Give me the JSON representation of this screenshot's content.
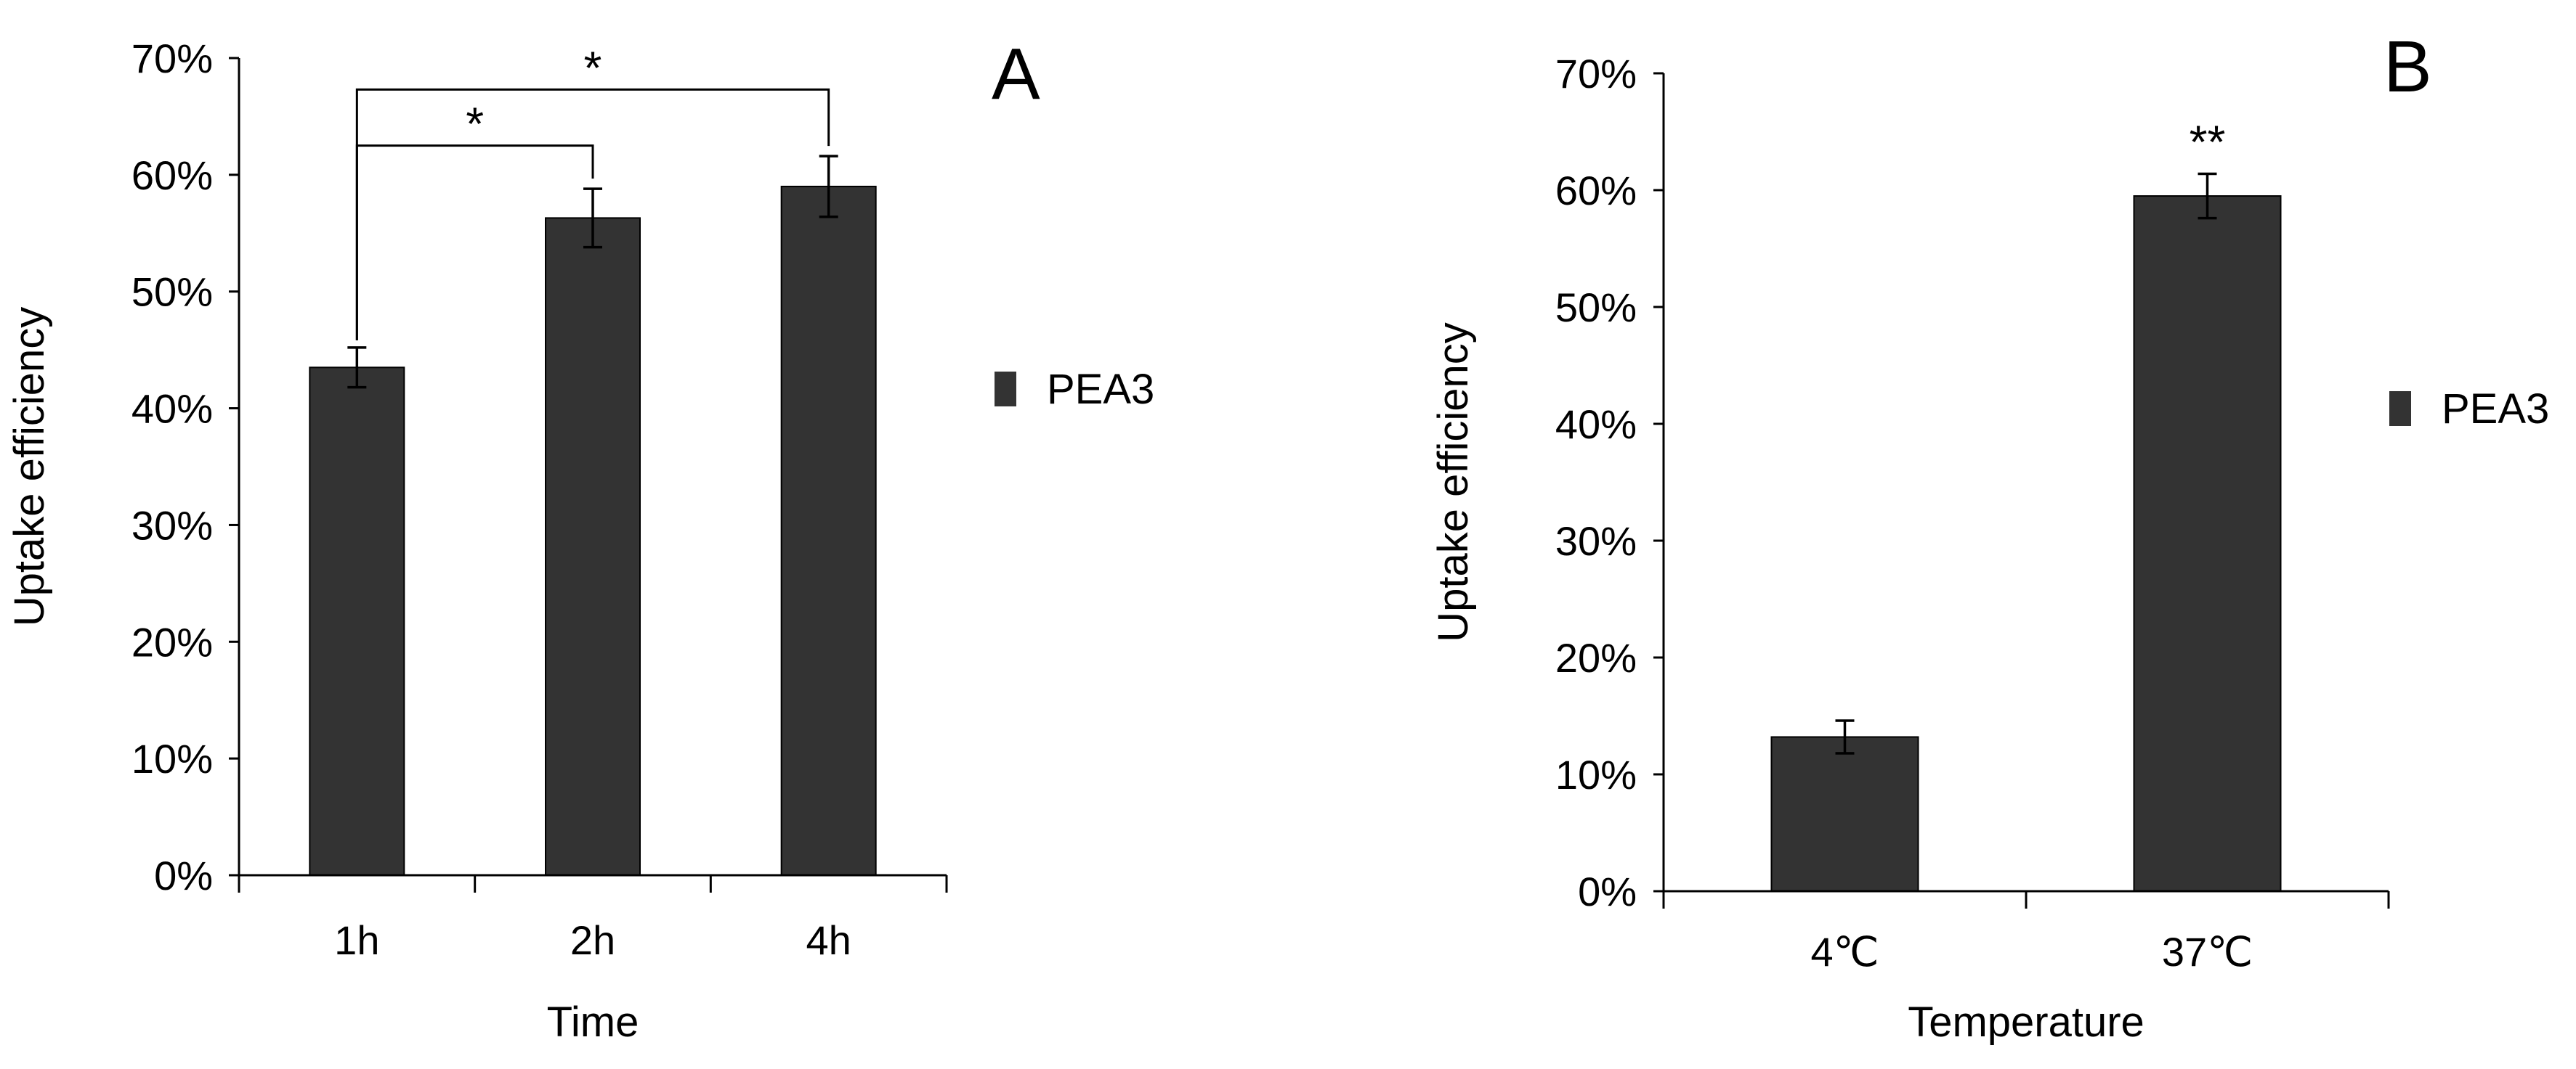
{
  "chart_data": [
    {
      "type": "bar",
      "panel_label": "A",
      "categories": [
        "1h",
        "2h",
        "4h"
      ],
      "series": [
        {
          "name": "PEA3",
          "values": [
            43.5,
            56.3,
            59.0
          ],
          "errors": [
            1.7,
            2.5,
            2.6
          ]
        }
      ],
      "xlabel": "Time",
      "ylabel": "Uptake efficiency",
      "ylim": [
        0,
        70
      ],
      "yticks": [
        0,
        10,
        20,
        30,
        40,
        50,
        60,
        70
      ],
      "ytick_labels": [
        "0%",
        "10%",
        "20%",
        "30%",
        "40%",
        "50%",
        "60%",
        "70%"
      ],
      "legend": [
        "PEA3"
      ],
      "legend_position": "right",
      "significance": [
        {
          "from": "1h",
          "to": "2h",
          "label": "*",
          "level": 62.5
        },
        {
          "from": "1h",
          "to": "4h",
          "label": "*",
          "level": 67.3
        }
      ]
    },
    {
      "type": "bar",
      "panel_label": "B",
      "categories": [
        "4℃",
        "37℃"
      ],
      "series": [
        {
          "name": "PEA3",
          "values": [
            13.2,
            59.5
          ],
          "errors": [
            1.4,
            1.9
          ]
        }
      ],
      "xlabel": "Temperature",
      "ylabel": "Uptake efficiency",
      "ylim": [
        0,
        70
      ],
      "yticks": [
        0,
        10,
        20,
        30,
        40,
        50,
        60,
        70
      ],
      "ytick_labels": [
        "0%",
        "10%",
        "20%",
        "30%",
        "40%",
        "50%",
        "60%",
        "70%"
      ],
      "legend": [
        "PEA3"
      ],
      "legend_position": "right",
      "annotations": [
        {
          "category": "37℃",
          "label": "**"
        }
      ]
    }
  ],
  "colors": {
    "bar": "#333333",
    "axis": "#000000"
  }
}
